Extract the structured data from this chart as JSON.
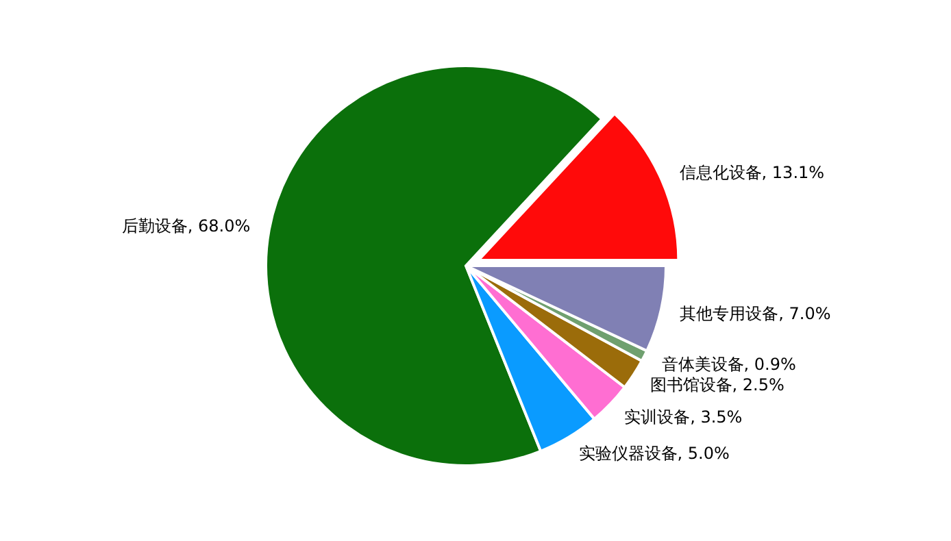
{
  "chart_data": {
    "type": "pie",
    "categories": [
      "信息化设备",
      "后勤设备",
      "实验仪器设备",
      "实训设备",
      "图书馆设备",
      "音体美设备",
      "其他专用设备"
    ],
    "values": [
      13.1,
      68.0,
      5.0,
      3.5,
      2.5,
      0.9,
      7.0
    ],
    "value_labels": [
      "13.1%",
      "68.0%",
      "5.0%",
      "3.5%",
      "2.5%",
      "0.9%",
      "7.0%"
    ],
    "colors": [
      "#ff0a0a",
      "#0b700b",
      "#0a9bff",
      "#ff6ed2",
      "#9b6c0a",
      "#6fa06f",
      "#8080b4"
    ]
  }
}
